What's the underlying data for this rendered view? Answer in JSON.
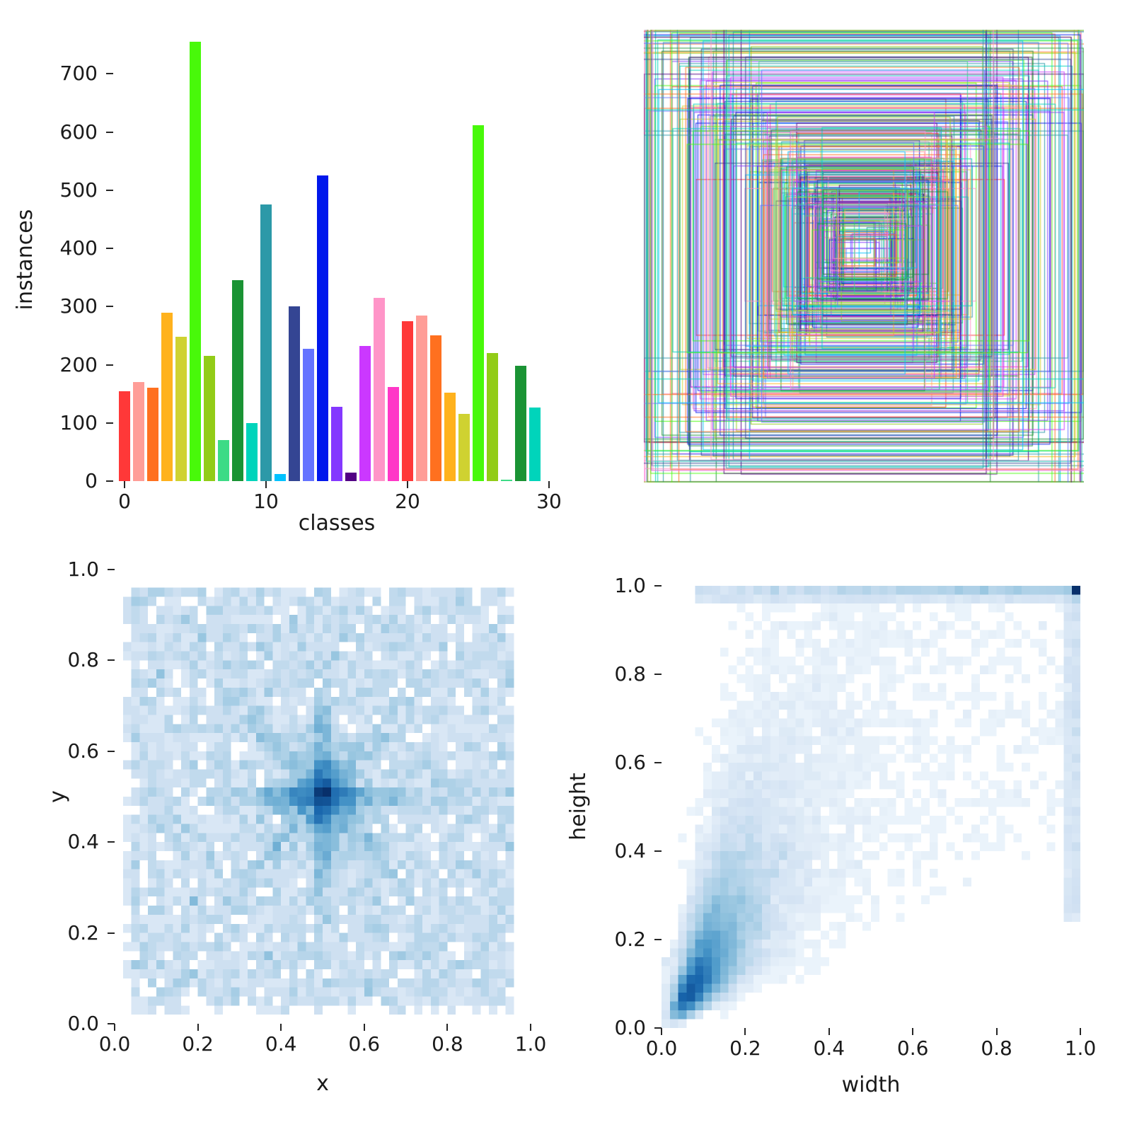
{
  "figure": {
    "background": "#ffffff",
    "description": "Dataset labels summary figure: per-class instance counts, overlaid bounding boxes, xy-center density, width-height density"
  },
  "palette": [
    "#FF3838",
    "#FF9D97",
    "#FF701F",
    "#FFB21D",
    "#CFD231",
    "#48F90A",
    "#92CC17",
    "#3DDB86",
    "#1A9334",
    "#00D4BB",
    "#2C99A8",
    "#00C2FF",
    "#344593",
    "#6473FF",
    "#0018EC",
    "#8438FF",
    "#520085",
    "#CB38FF",
    "#FF95C8",
    "#FF37C7"
  ],
  "heatmap_colormap": {
    "zero": "#ffffff",
    "stops": [
      "#f7fbff",
      "#d0e1f2",
      "#94c4df",
      "#4a98c9",
      "#1764ab",
      "#08306b"
    ]
  },
  "chart_data": [
    {
      "id": "class-instances-bar",
      "type": "bar",
      "title": "",
      "xlabel": "classes",
      "ylabel": "instances",
      "xticks": [
        0,
        10,
        20,
        30
      ],
      "yticks": [
        0,
        100,
        200,
        300,
        400,
        500,
        600,
        700
      ],
      "xlim": [
        -0.8,
        30.8
      ],
      "ylim": [
        0,
        760
      ],
      "categories": [
        0,
        1,
        2,
        3,
        4,
        5,
        6,
        7,
        8,
        9,
        10,
        11,
        12,
        13,
        14,
        15,
        16,
        17,
        18,
        19,
        20,
        21,
        22,
        23,
        24,
        25,
        26,
        27,
        28,
        29
      ],
      "values": [
        155,
        170,
        160,
        290,
        248,
        755,
        215,
        70,
        345,
        100,
        475,
        12,
        300,
        228,
        525,
        128,
        15,
        232,
        315,
        162,
        275,
        285,
        250,
        152,
        115,
        612,
        220,
        2,
        198,
        126
      ],
      "legend": "none",
      "grid": false
    },
    {
      "id": "bounding-boxes-overlay",
      "type": "boxes",
      "box_count": 350,
      "seed": 20240601,
      "center": [
        0.5,
        0.49
      ],
      "note": "all label bounding boxes drawn centered and overlaid; sizes range from tiny to full extent leaving a small white hole at the exact center"
    },
    {
      "id": "xy-heatmap",
      "type": "heatmap",
      "xlabel": "x",
      "ylabel": "y",
      "bins": 50,
      "samples": 7000,
      "seed": 1234,
      "xticks": [
        "0.0",
        "0.2",
        "0.4",
        "0.6",
        "0.8",
        "1.0"
      ],
      "yticks": [
        "0.0",
        "0.2",
        "0.4",
        "0.6",
        "0.8",
        "1.0"
      ],
      "xlim": [
        0,
        1
      ],
      "ylim": [
        0,
        1
      ],
      "distribution": "near-uniform over [0,1]^2 with a dense plus/cross-shaped concentration centred at (0.5, 0.5) and faint diagonals",
      "grid": false
    },
    {
      "id": "wh-heatmap",
      "type": "heatmap",
      "xlabel": "width",
      "ylabel": "height",
      "bins": 50,
      "samples": 16000,
      "seed": 5678,
      "xticks": [
        "0.0",
        "0.2",
        "0.4",
        "0.6",
        "0.8",
        "1.0"
      ],
      "yticks": [
        "0.0",
        "0.2",
        "0.4",
        "0.6",
        "0.8",
        "1.0"
      ],
      "xlim": [
        0,
        1
      ],
      "ylim": [
        0,
        1
      ],
      "distribution": "dense diagonal lobe of small boxes peaking near (0.12, 0.18), tapering toward (1,1), sparse speckle above the diagonal, dark spike in the top-right corner",
      "grid": false
    }
  ]
}
